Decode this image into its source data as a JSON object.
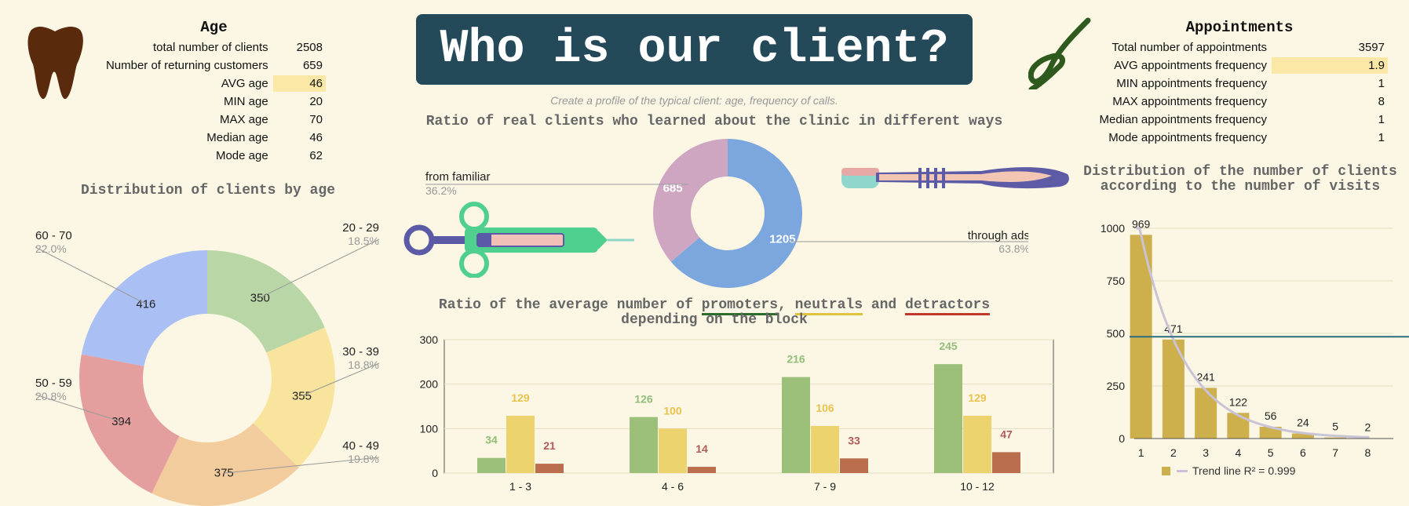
{
  "header": {
    "title": "Who is our client?",
    "subtitle": "Create a profile of the typical client: age, frequency of calls."
  },
  "age_stats": {
    "title": "Age",
    "rows": [
      {
        "label": "total number of clients",
        "value": "2508",
        "highlight": false
      },
      {
        "label": "Number of returning customers",
        "value": "659",
        "highlight": false
      },
      {
        "label": "AVG age",
        "value": "46",
        "highlight": true
      },
      {
        "label": "MIN age",
        "value": "20",
        "highlight": false
      },
      {
        "label": "MAX age",
        "value": "70",
        "highlight": false
      },
      {
        "label": "Median age",
        "value": "46",
        "highlight": false
      },
      {
        "label": "Mode age",
        "value": "62",
        "highlight": false
      }
    ]
  },
  "appointment_stats": {
    "title": "Appointments",
    "rows": [
      {
        "label": "Total number of appointments",
        "value": "3597",
        "highlight": false
      },
      {
        "label": "AVG appointments frequency",
        "value": "1.9",
        "highlight": true
      },
      {
        "label": "MIN appointments frequency",
        "value": "1",
        "highlight": false
      },
      {
        "label": "MAX appointments frequency",
        "value": "8",
        "highlight": false
      },
      {
        "label": "Median appointments frequency",
        "value": "1",
        "highlight": false
      },
      {
        "label": "Mode appointments frequency",
        "value": "1",
        "highlight": false
      }
    ]
  },
  "icons": [
    "tooth-icon",
    "syringe-icon",
    "toothbrush-icon",
    "floss-icon"
  ],
  "chart_data": [
    {
      "type": "pie",
      "title": "Distribution of clients by age",
      "donut": true,
      "slices": [
        {
          "label": "20 - 29",
          "value": 350,
          "percent": "18.5%",
          "color": "#b8d6a6"
        },
        {
          "label": "30 - 39",
          "value": 355,
          "percent": "18.8%",
          "color": "#f8e49c"
        },
        {
          "label": "40 - 49",
          "value": 375,
          "percent": "19.8%",
          "color": "#f2cc9c"
        },
        {
          "label": "50 - 59",
          "value": 394,
          "percent": "20.8%",
          "color": "#e49e9e"
        },
        {
          "label": "60 - 70",
          "value": 416,
          "percent": "22.0%",
          "color": "#aabff4"
        }
      ]
    },
    {
      "type": "pie",
      "title": "Ratio of real clients who learned about the clinic in different ways",
      "donut": true,
      "slices": [
        {
          "label": "through ads",
          "value": 1205,
          "percent": "63.8%",
          "color": "#7ba7de"
        },
        {
          "label": "from familiar",
          "value": 685,
          "percent": "36.2%",
          "color": "#cfa6c2"
        }
      ]
    },
    {
      "type": "bar",
      "title": "Ratio of the average number of promoters, neutrals and detractors depending on the block",
      "title_parts": [
        "Ratio of the average number of ",
        "promoters",
        ", ",
        "neutrals",
        " and ",
        "detractors",
        " depending on the block"
      ],
      "categories": [
        "1 - 3",
        "4 - 6",
        "7 - 9",
        "10 - 12"
      ],
      "series": [
        {
          "name": "promoters",
          "values": [
            34,
            126,
            216,
            245
          ],
          "color": "#9cc07a",
          "label_color": "#93bd7b"
        },
        {
          "name": "neutrals",
          "values": [
            129,
            100,
            106,
            129
          ],
          "color": "#ecd36e",
          "label_color": "#e9c24d"
        },
        {
          "name": "detractors",
          "values": [
            21,
            14,
            33,
            47
          ],
          "color": "#bb6e4e",
          "label_color": "#b05a5a"
        }
      ],
      "underline_colors": [
        "#2e6b2e",
        "#e0c33c",
        "#c0392b"
      ],
      "ylim": [
        0,
        300
      ],
      "yticks": [
        0,
        100,
        200,
        300
      ],
      "grid": true
    },
    {
      "type": "bar",
      "title": "Distribution of the number of clients according to the number of visits",
      "categories": [
        "1",
        "2",
        "3",
        "4",
        "5",
        "6",
        "7",
        "8"
      ],
      "values": [
        969,
        471,
        241,
        122,
        56,
        24,
        5,
        2
      ],
      "color": "#cdaf4c",
      "ylim": [
        0,
        1000
      ],
      "yticks": [
        0,
        250,
        500,
        750,
        1000
      ],
      "reference_line": 484,
      "reference_color": "#2f6b7e",
      "trend_color": "#c9c3d6",
      "legend": "Trend line R² = 0.999",
      "grid": true
    }
  ]
}
